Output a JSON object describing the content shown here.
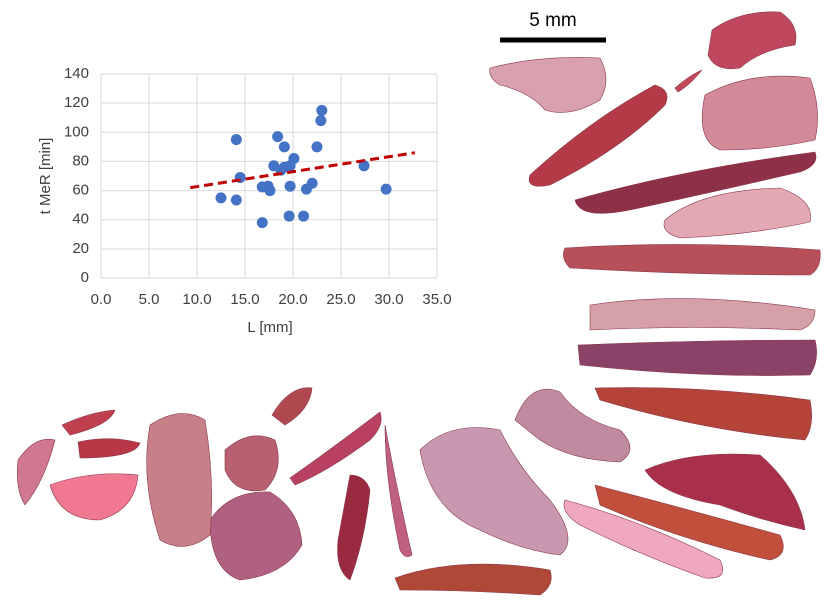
{
  "chart_data": {
    "type": "scatter",
    "x_label": "L [mm]",
    "y_label": "t MeR [min]",
    "x": [
      12.5,
      14.1,
      14.1,
      14.5,
      16.8,
      16.8,
      17.4,
      17.6,
      18.0,
      18.4,
      18.75,
      19.1,
      19.1,
      19.6,
      19.7,
      19.7,
      20.1,
      21.1,
      21.4,
      22.0,
      22.5,
      22.9,
      23.0,
      27.4,
      29.7
    ],
    "y": [
      55,
      95,
      53.5,
      69,
      62.5,
      38,
      63,
      60,
      77,
      97,
      74,
      90,
      76,
      42.5,
      63,
      77,
      82,
      42.5,
      61,
      65,
      90,
      108,
      115,
      77,
      61
    ],
    "color": "#4472c4",
    "trendline": {
      "x": [
        9.3,
        32.7
      ],
      "y": [
        62,
        86
      ],
      "color": "#c00000"
    },
    "xlim": [
      0,
      35
    ],
    "ylim": [
      0,
      140
    ],
    "xticks": [
      {
        "value": 0,
        "label": "0.0"
      },
      {
        "value": 5,
        "label": "5.0"
      },
      {
        "value": 10,
        "label": "10.0"
      },
      {
        "value": 15,
        "label": "15.0"
      },
      {
        "value": 20,
        "label": "20.0"
      },
      {
        "value": 25,
        "label": "25.0"
      },
      {
        "value": 30,
        "label": "30.0"
      },
      {
        "value": 35,
        "label": "35.0"
      }
    ],
    "yticks": [
      0,
      20,
      40,
      60,
      80,
      100,
      120,
      140
    ],
    "grid": true
  },
  "scale_bar": "5 mm"
}
